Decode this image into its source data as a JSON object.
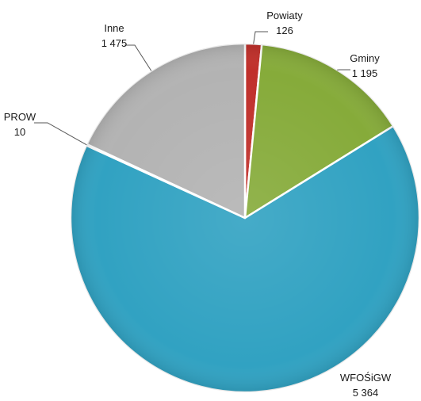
{
  "chart_data": {
    "type": "pie",
    "title": "",
    "start_angle_deg": 0,
    "direction": "clockwise",
    "slices": [
      {
        "label": "Powiaty",
        "value_label": "126",
        "value": 126,
        "color": "#c0302b"
      },
      {
        "label": "Gminy",
        "value_label": "1 195",
        "value": 1195,
        "color": "#86ab3a"
      },
      {
        "label": "WFOŚiGW",
        "value_label": "5 364",
        "value": 5364,
        "color": "#31a2c2"
      },
      {
        "label": "PROW",
        "value_label": "10",
        "value": 10,
        "color": "#9dc6e0"
      },
      {
        "label": "Inne",
        "value_label": "1 475",
        "value": 1475,
        "color": "#b3b3b3"
      }
    ],
    "legend": "none",
    "data_labels": "outside-with-leader-lines"
  }
}
